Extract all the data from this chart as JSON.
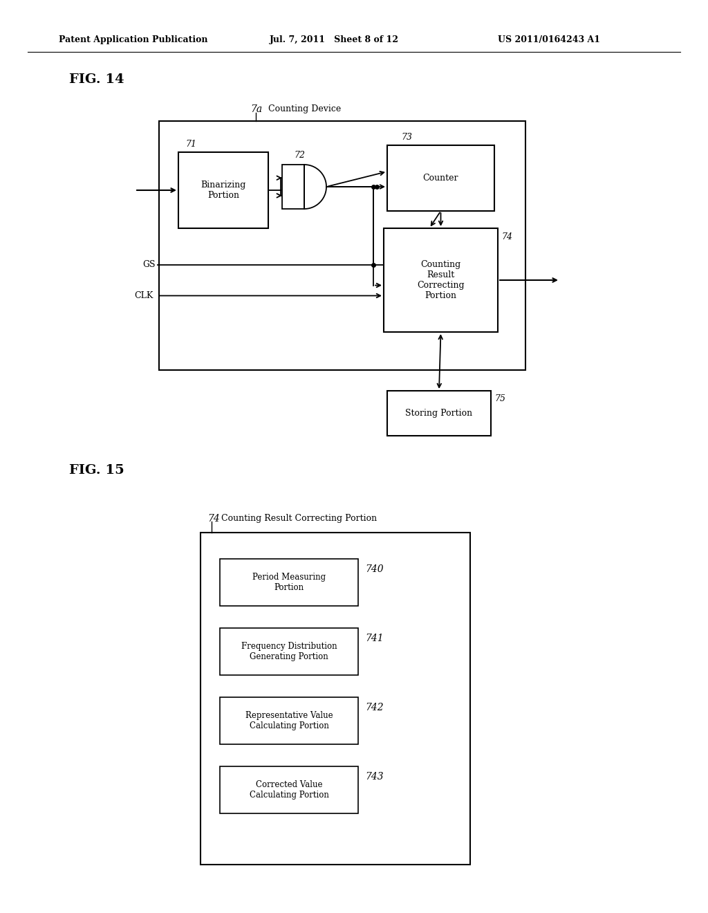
{
  "background_color": "#ffffff",
  "header_left": "Patent Application Publication",
  "header_mid": "Jul. 7, 2011   Sheet 8 of 12",
  "header_right": "US 2011/0164243 A1",
  "fig14_label": "FIG. 14",
  "fig15_label": "FIG. 15"
}
